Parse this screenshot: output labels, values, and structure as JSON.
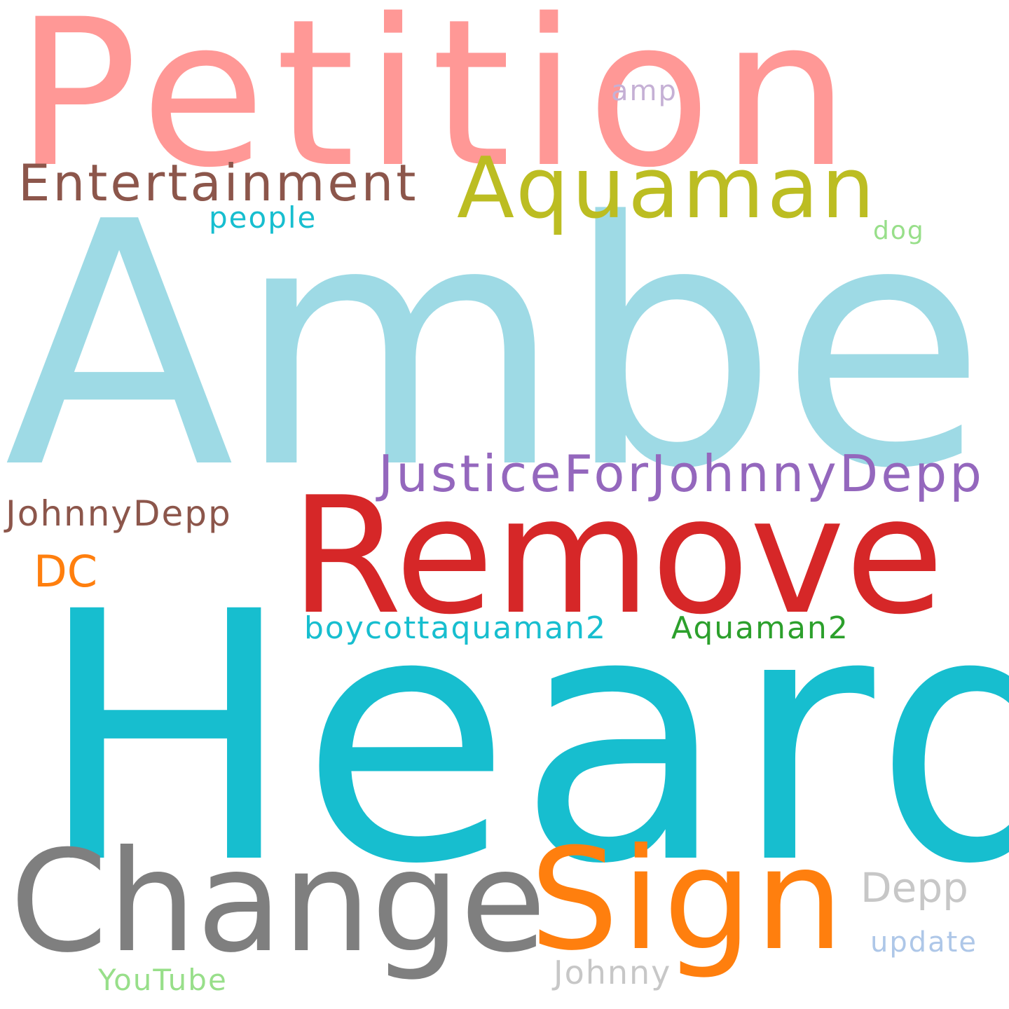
{
  "background_color": "#ffffff",
  "words": {
    "petition": {
      "text": "Petition",
      "color": "#ff9896"
    },
    "amber": {
      "text": "Amber",
      "color": "#9edae5"
    },
    "heard": {
      "text": "Heard",
      "color": "#17becf"
    },
    "remove": {
      "text": "Remove",
      "color": "#d62728"
    },
    "change": {
      "text": "Change",
      "color": "#7f7f7f"
    },
    "sign": {
      "text": "Sign",
      "color": "#ff7f0e"
    },
    "aquaman": {
      "text": "Aquaman",
      "color": "#bcbd22"
    },
    "entertainment": {
      "text": "Entertainment",
      "color": "#8c564b"
    },
    "justice": {
      "text": "JusticeForJohnnyDepp",
      "color": "#9467bd"
    },
    "johnnydepp": {
      "text": "JohnnyDepp",
      "color": "#8c564b"
    },
    "dc": {
      "text": "DC",
      "color": "#ff7f0e"
    },
    "boycott": {
      "text": "boycottaquaman2",
      "color": "#17becf"
    },
    "aquaman2": {
      "text": "Aquaman2",
      "color": "#2ca02c"
    },
    "depp": {
      "text": "Depp",
      "color": "#c7c7c7"
    },
    "update": {
      "text": "update",
      "color": "#aec7e8"
    },
    "johnny": {
      "text": "Johnny",
      "color": "#c7c7c7"
    },
    "youtube": {
      "text": "YouTube",
      "color": "#98df8a"
    },
    "people": {
      "text": "people",
      "color": "#17becf"
    },
    "amp": {
      "text": "amp",
      "color": "#c5b0d5"
    },
    "dog": {
      "text": "dog",
      "color": "#98df8a"
    }
  }
}
